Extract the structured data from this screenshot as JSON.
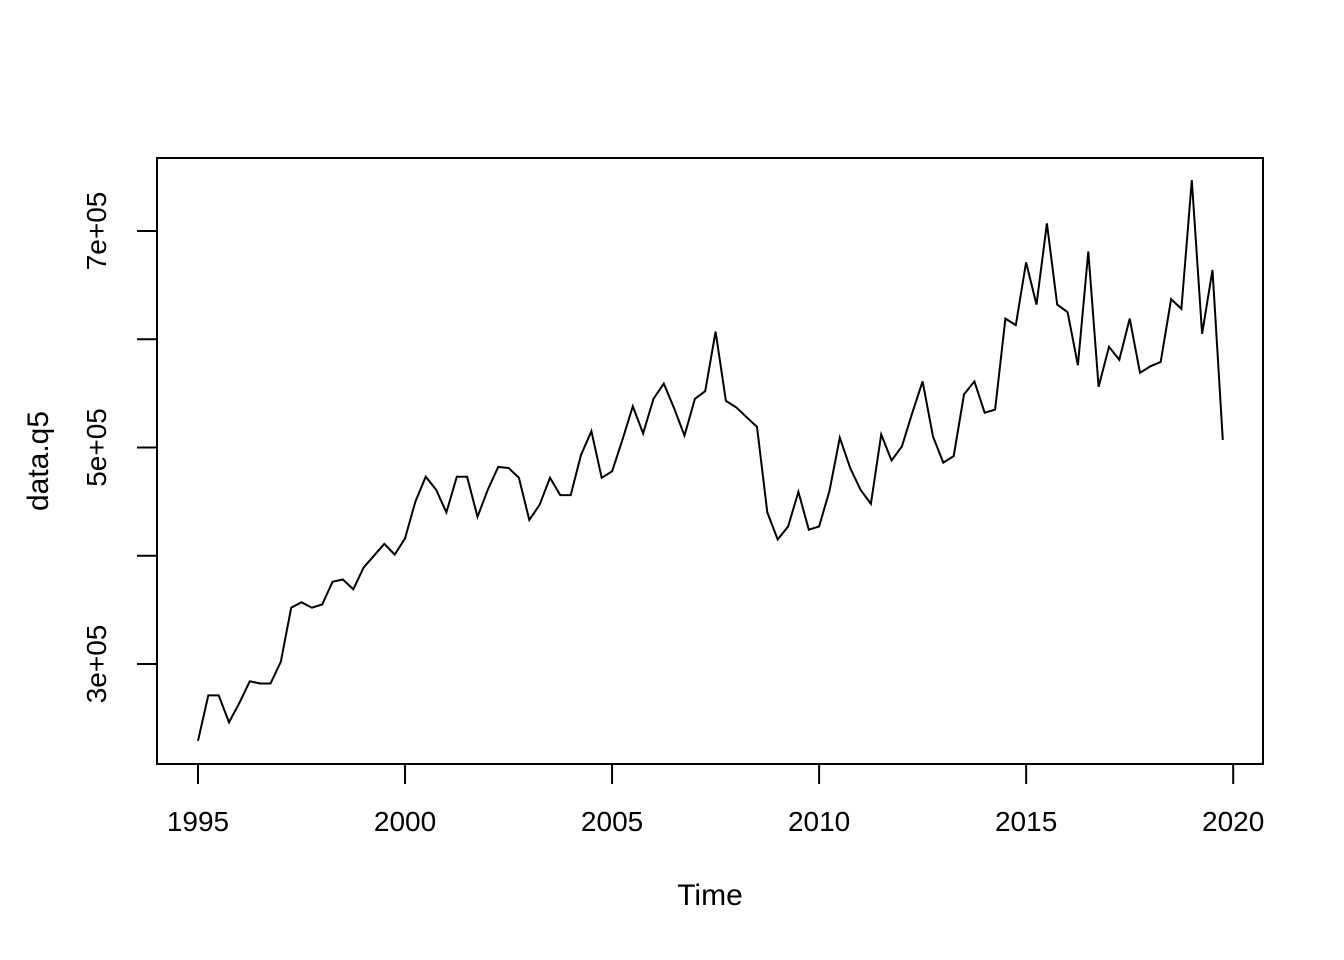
{
  "figure": {
    "background": "#ffffff",
    "line_color": "#000000"
  },
  "chart_data": {
    "type": "line",
    "title": "",
    "xlabel": "Time",
    "ylabel": "data.q5",
    "grid": false,
    "legend": null,
    "frequency": "quarterly",
    "xlim": [
      1994.01,
      2020.72
    ],
    "ylim": [
      207600,
      767400
    ],
    "x_ticks": [
      {
        "value": 1995,
        "label": "1995"
      },
      {
        "value": 2000,
        "label": "2000"
      },
      {
        "value": 2005,
        "label": "2005"
      },
      {
        "value": 2010,
        "label": "2010"
      },
      {
        "value": 2015,
        "label": "2015"
      },
      {
        "value": 2020,
        "label": "2020"
      }
    ],
    "y_ticks": [
      {
        "value": 300000,
        "label": "3e+05"
      },
      {
        "value": 400000,
        "label": ""
      },
      {
        "value": 500000,
        "label": "5e+05"
      },
      {
        "value": 600000,
        "label": ""
      },
      {
        "value": 700000,
        "label": "7e+05"
      }
    ],
    "x_start": 1995.0,
    "x_step": 0.25,
    "series": [
      {
        "name": "data.q5",
        "values": [
          229000,
          271000,
          271000,
          246000,
          264000,
          284000,
          282000,
          282000,
          302000,
          352000,
          357000,
          352000,
          355000,
          376000,
          378000,
          369000,
          389000,
          400000,
          411000,
          401000,
          416000,
          450000,
          473000,
          461000,
          440000,
          473000,
          473000,
          436000,
          461000,
          482000,
          481000,
          472000,
          433000,
          447000,
          472000,
          456000,
          456000,
          493000,
          515000,
          472000,
          478000,
          507000,
          538000,
          513000,
          545000,
          559000,
          536000,
          511000,
          545000,
          552000,
          607000,
          543000,
          537000,
          528000,
          519000,
          440000,
          415000,
          427000,
          459000,
          424000,
          427000,
          460000,
          509000,
          481000,
          461000,
          448000,
          512000,
          488000,
          501000,
          532000,
          561000,
          510000,
          486000,
          492000,
          549000,
          561000,
          532000,
          535000,
          619000,
          613000,
          671000,
          632000,
          707000,
          632000,
          625000,
          576000,
          681000,
          556000,
          593000,
          581000,
          619000,
          569000,
          575000,
          579000,
          637000,
          628000,
          747000,
          605000,
          664000,
          507000
        ]
      }
    ]
  }
}
